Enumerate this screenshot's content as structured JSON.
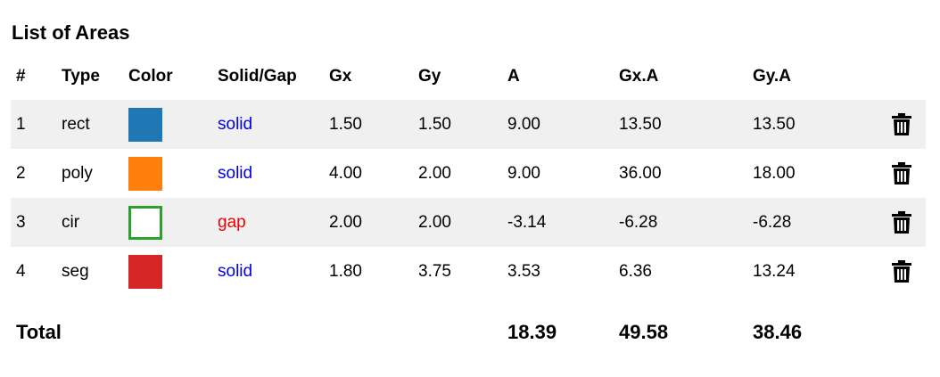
{
  "title": "List of Areas",
  "columns": [
    "#",
    "Type",
    "Color",
    "Solid/Gap",
    "Gx",
    "Gy",
    "A",
    "Gx.A",
    "Gy.A"
  ],
  "rows": [
    {
      "index": "1",
      "type": "rect",
      "color": "#1f77b4",
      "fill": "filled",
      "mode": "solid",
      "gx": "1.50",
      "gy": "1.50",
      "a": "9.00",
      "gxa": "13.50",
      "gya": "13.50"
    },
    {
      "index": "2",
      "type": "poly",
      "color": "#ff7f0e",
      "fill": "filled",
      "mode": "solid",
      "gx": "4.00",
      "gy": "2.00",
      "a": "9.00",
      "gxa": "36.00",
      "gya": "18.00"
    },
    {
      "index": "3",
      "type": "cir",
      "color": "#2ca02c",
      "fill": "outline",
      "mode": "gap",
      "gx": "2.00",
      "gy": "2.00",
      "a": "-3.14",
      "gxa": "-6.28",
      "gya": "-6.28"
    },
    {
      "index": "4",
      "type": "seg",
      "color": "#d62728",
      "fill": "filled",
      "mode": "solid",
      "gx": "1.80",
      "gy": "3.75",
      "a": "3.53",
      "gxa": "6.36",
      "gya": "13.24"
    }
  ],
  "total": {
    "label": "Total",
    "a": "18.39",
    "gxa": "49.58",
    "gya": "38.46"
  },
  "icons": {
    "delete": "trash-icon"
  }
}
